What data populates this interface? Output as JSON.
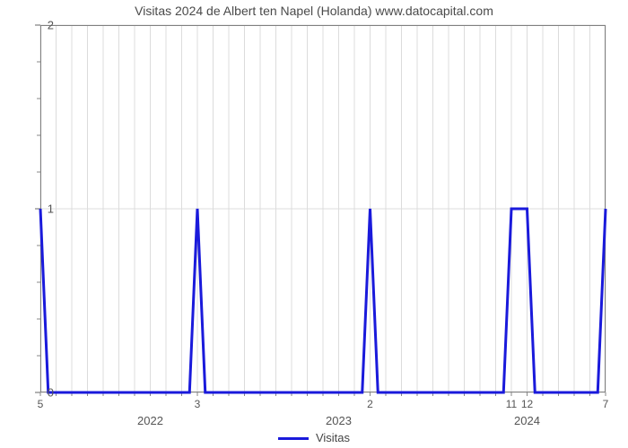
{
  "chart": {
    "type": "line-step",
    "title": "Visitas 2024 de Albert ten Napel (Holanda) www.datocapital.com",
    "title_fontsize": 14,
    "title_color": "#4a4a4a",
    "background_color": "#ffffff",
    "plot_border_color": "#808080",
    "grid_color": "#dcdcdc",
    "line_color": "#1a1adb",
    "line_width": 3,
    "legend_label": "Visitas",
    "y_axis": {
      "min": 0,
      "max": 2,
      "ticks": [
        0,
        1,
        2
      ],
      "minor_ticks": [
        0.2,
        0.4,
        0.6,
        0.8,
        1.2,
        1.4,
        1.6,
        1.8
      ],
      "tick_fontsize": 13
    },
    "x_axis": {
      "min": 0,
      "max": 36,
      "major_labels": [
        {
          "pos": 7,
          "label": "2022"
        },
        {
          "pos": 19,
          "label": "2023"
        },
        {
          "pos": 31,
          "label": "2024"
        }
      ],
      "minor_labels": [
        {
          "pos": 0,
          "label": "5"
        },
        {
          "pos": 10,
          "label": "3"
        },
        {
          "pos": 21,
          "label": "2"
        },
        {
          "pos": 30,
          "label": "11"
        },
        {
          "pos": 31,
          "label": "12"
        },
        {
          "pos": 36,
          "label": "7"
        }
      ],
      "minor_tick_positions": [
        0,
        1,
        2,
        3,
        4,
        5,
        6,
        7,
        8,
        9,
        10,
        11,
        12,
        13,
        14,
        15,
        16,
        17,
        18,
        19,
        20,
        21,
        22,
        23,
        24,
        25,
        26,
        27,
        28,
        29,
        30,
        31,
        32,
        33,
        34,
        35,
        36
      ]
    },
    "series": {
      "name": "Visitas",
      "points": [
        [
          0,
          1
        ],
        [
          0.5,
          0
        ],
        [
          9.5,
          0
        ],
        [
          10,
          1
        ],
        [
          10.5,
          0
        ],
        [
          20.5,
          0
        ],
        [
          21,
          1
        ],
        [
          21.5,
          0
        ],
        [
          29.5,
          0
        ],
        [
          30,
          1
        ],
        [
          31,
          1
        ],
        [
          31.5,
          0
        ],
        [
          35.5,
          0
        ],
        [
          36,
          1
        ]
      ]
    }
  }
}
